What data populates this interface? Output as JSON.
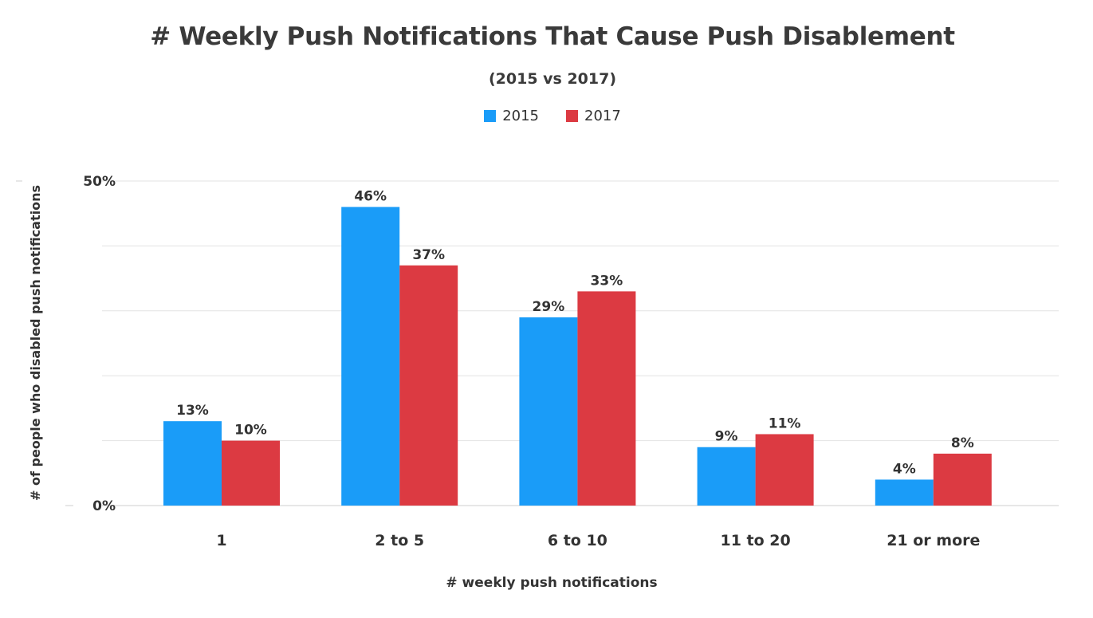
{
  "chart_data": {
    "type": "bar",
    "title": "# Weekly Push Notifications That Cause Push Disablement",
    "subtitle": "(2015 vs 2017)",
    "xlabel": "# weekly push notifications",
    "ylabel": "# of people who disabled push notifications",
    "categories": [
      "1",
      "2 to 5",
      "6 to 10",
      "11 to 20",
      "21 or more"
    ],
    "series": [
      {
        "name": "2015",
        "color": "#1a9cf8",
        "values": [
          13,
          46,
          29,
          9,
          4
        ],
        "labels": [
          "13%",
          "46%",
          "29%",
          "9%",
          "4%"
        ]
      },
      {
        "name": "2017",
        "color": "#dc3a42",
        "values": [
          10,
          37,
          33,
          11,
          8
        ],
        "labels": [
          "10%",
          "37%",
          "33%",
          "11%",
          "8%"
        ]
      }
    ],
    "ylim": [
      0,
      50
    ],
    "yticks": [
      {
        "value": 0,
        "label": "0%"
      },
      {
        "value": 50,
        "label": "50%"
      }
    ],
    "gridlines": [
      0,
      10,
      20,
      30,
      40,
      50
    ],
    "grid": true,
    "legend_position": "top-center"
  }
}
